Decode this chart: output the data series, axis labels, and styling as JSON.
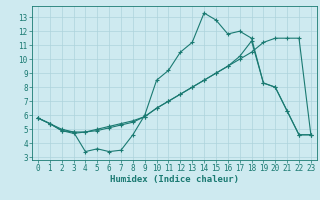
{
  "xlabel": "Humidex (Indice chaleur)",
  "background_color": "#ceeaf0",
  "grid_color": "#aed4dc",
  "line_color": "#1a7a72",
  "xlim": [
    -0.5,
    23.5
  ],
  "ylim": [
    2.8,
    13.8
  ],
  "yticks": [
    3,
    4,
    5,
    6,
    7,
    8,
    9,
    10,
    11,
    12,
    13
  ],
  "xticks": [
    0,
    1,
    2,
    3,
    4,
    5,
    6,
    7,
    8,
    9,
    10,
    11,
    12,
    13,
    14,
    15,
    16,
    17,
    18,
    19,
    20,
    21,
    22,
    23
  ],
  "line1_x": [
    0,
    1,
    2,
    3,
    4,
    5,
    6,
    7,
    8,
    9,
    10,
    11,
    12,
    13,
    14,
    15,
    16,
    17,
    18,
    19,
    20,
    21,
    22,
    23
  ],
  "line1_y": [
    5.8,
    5.4,
    4.9,
    4.7,
    4.8,
    5.0,
    5.2,
    5.4,
    5.6,
    5.9,
    6.5,
    7.0,
    7.5,
    8.0,
    8.5,
    9.0,
    9.5,
    10.0,
    10.5,
    11.2,
    11.5,
    11.5,
    11.5,
    4.6
  ],
  "line2_x": [
    0,
    1,
    2,
    3,
    4,
    5,
    6,
    7,
    8,
    9,
    10,
    11,
    12,
    13,
    14,
    15,
    16,
    17,
    18,
    19,
    20,
    21,
    22,
    23
  ],
  "line2_y": [
    5.8,
    5.4,
    4.9,
    4.8,
    3.4,
    3.6,
    3.4,
    3.5,
    4.6,
    6.0,
    8.5,
    9.2,
    10.5,
    11.2,
    13.3,
    12.8,
    11.8,
    12.0,
    11.5,
    8.3,
    8.0,
    6.3,
    4.6,
    4.6
  ],
  "line3_x": [
    0,
    1,
    2,
    3,
    4,
    5,
    6,
    7,
    8,
    9,
    10,
    11,
    12,
    13,
    14,
    15,
    16,
    17,
    18,
    19,
    20,
    21,
    22,
    23
  ],
  "line3_y": [
    5.8,
    5.4,
    5.0,
    4.8,
    4.8,
    4.9,
    5.1,
    5.3,
    5.5,
    5.9,
    6.5,
    7.0,
    7.5,
    8.0,
    8.5,
    9.0,
    9.5,
    10.2,
    11.3,
    8.3,
    8.0,
    6.3,
    4.6,
    4.6
  ]
}
